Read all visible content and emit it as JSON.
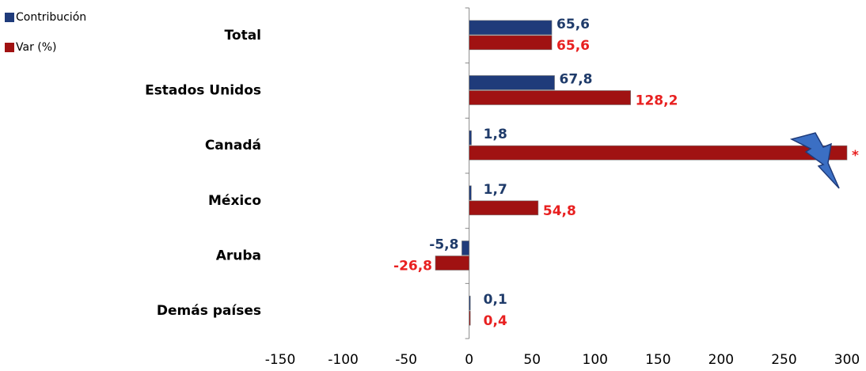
{
  "chart_data": {
    "type": "hbar",
    "categories": [
      "Total",
      "Estados Unidos",
      "Canadá",
      "México",
      "Aruba",
      "Demás países"
    ],
    "series": [
      {
        "name": "Contribución",
        "color": "#1f3b7a",
        "label_color": "#1f3b6a",
        "values": [
          65.6,
          67.8,
          1.8,
          1.7,
          -5.8,
          0.1
        ],
        "value_labels": [
          "65,6",
          "67,8",
          "1,8",
          "1,7",
          "-5,8",
          "0,1"
        ]
      },
      {
        "name": "Var (%)",
        "color": "#a01212",
        "label_color": "#e82020",
        "values": [
          65.6,
          128.2,
          300,
          54.8,
          -26.8,
          0.4
        ],
        "value_labels": [
          "65,6",
          "128,2",
          "*",
          "54,8",
          "-26,8",
          "0,4"
        ]
      }
    ],
    "xlim": [
      -150,
      300
    ],
    "xticks": [
      -150,
      -100,
      -50,
      0,
      50,
      100,
      150,
      200,
      250,
      300
    ],
    "grid": false,
    "legend": "top-left"
  }
}
